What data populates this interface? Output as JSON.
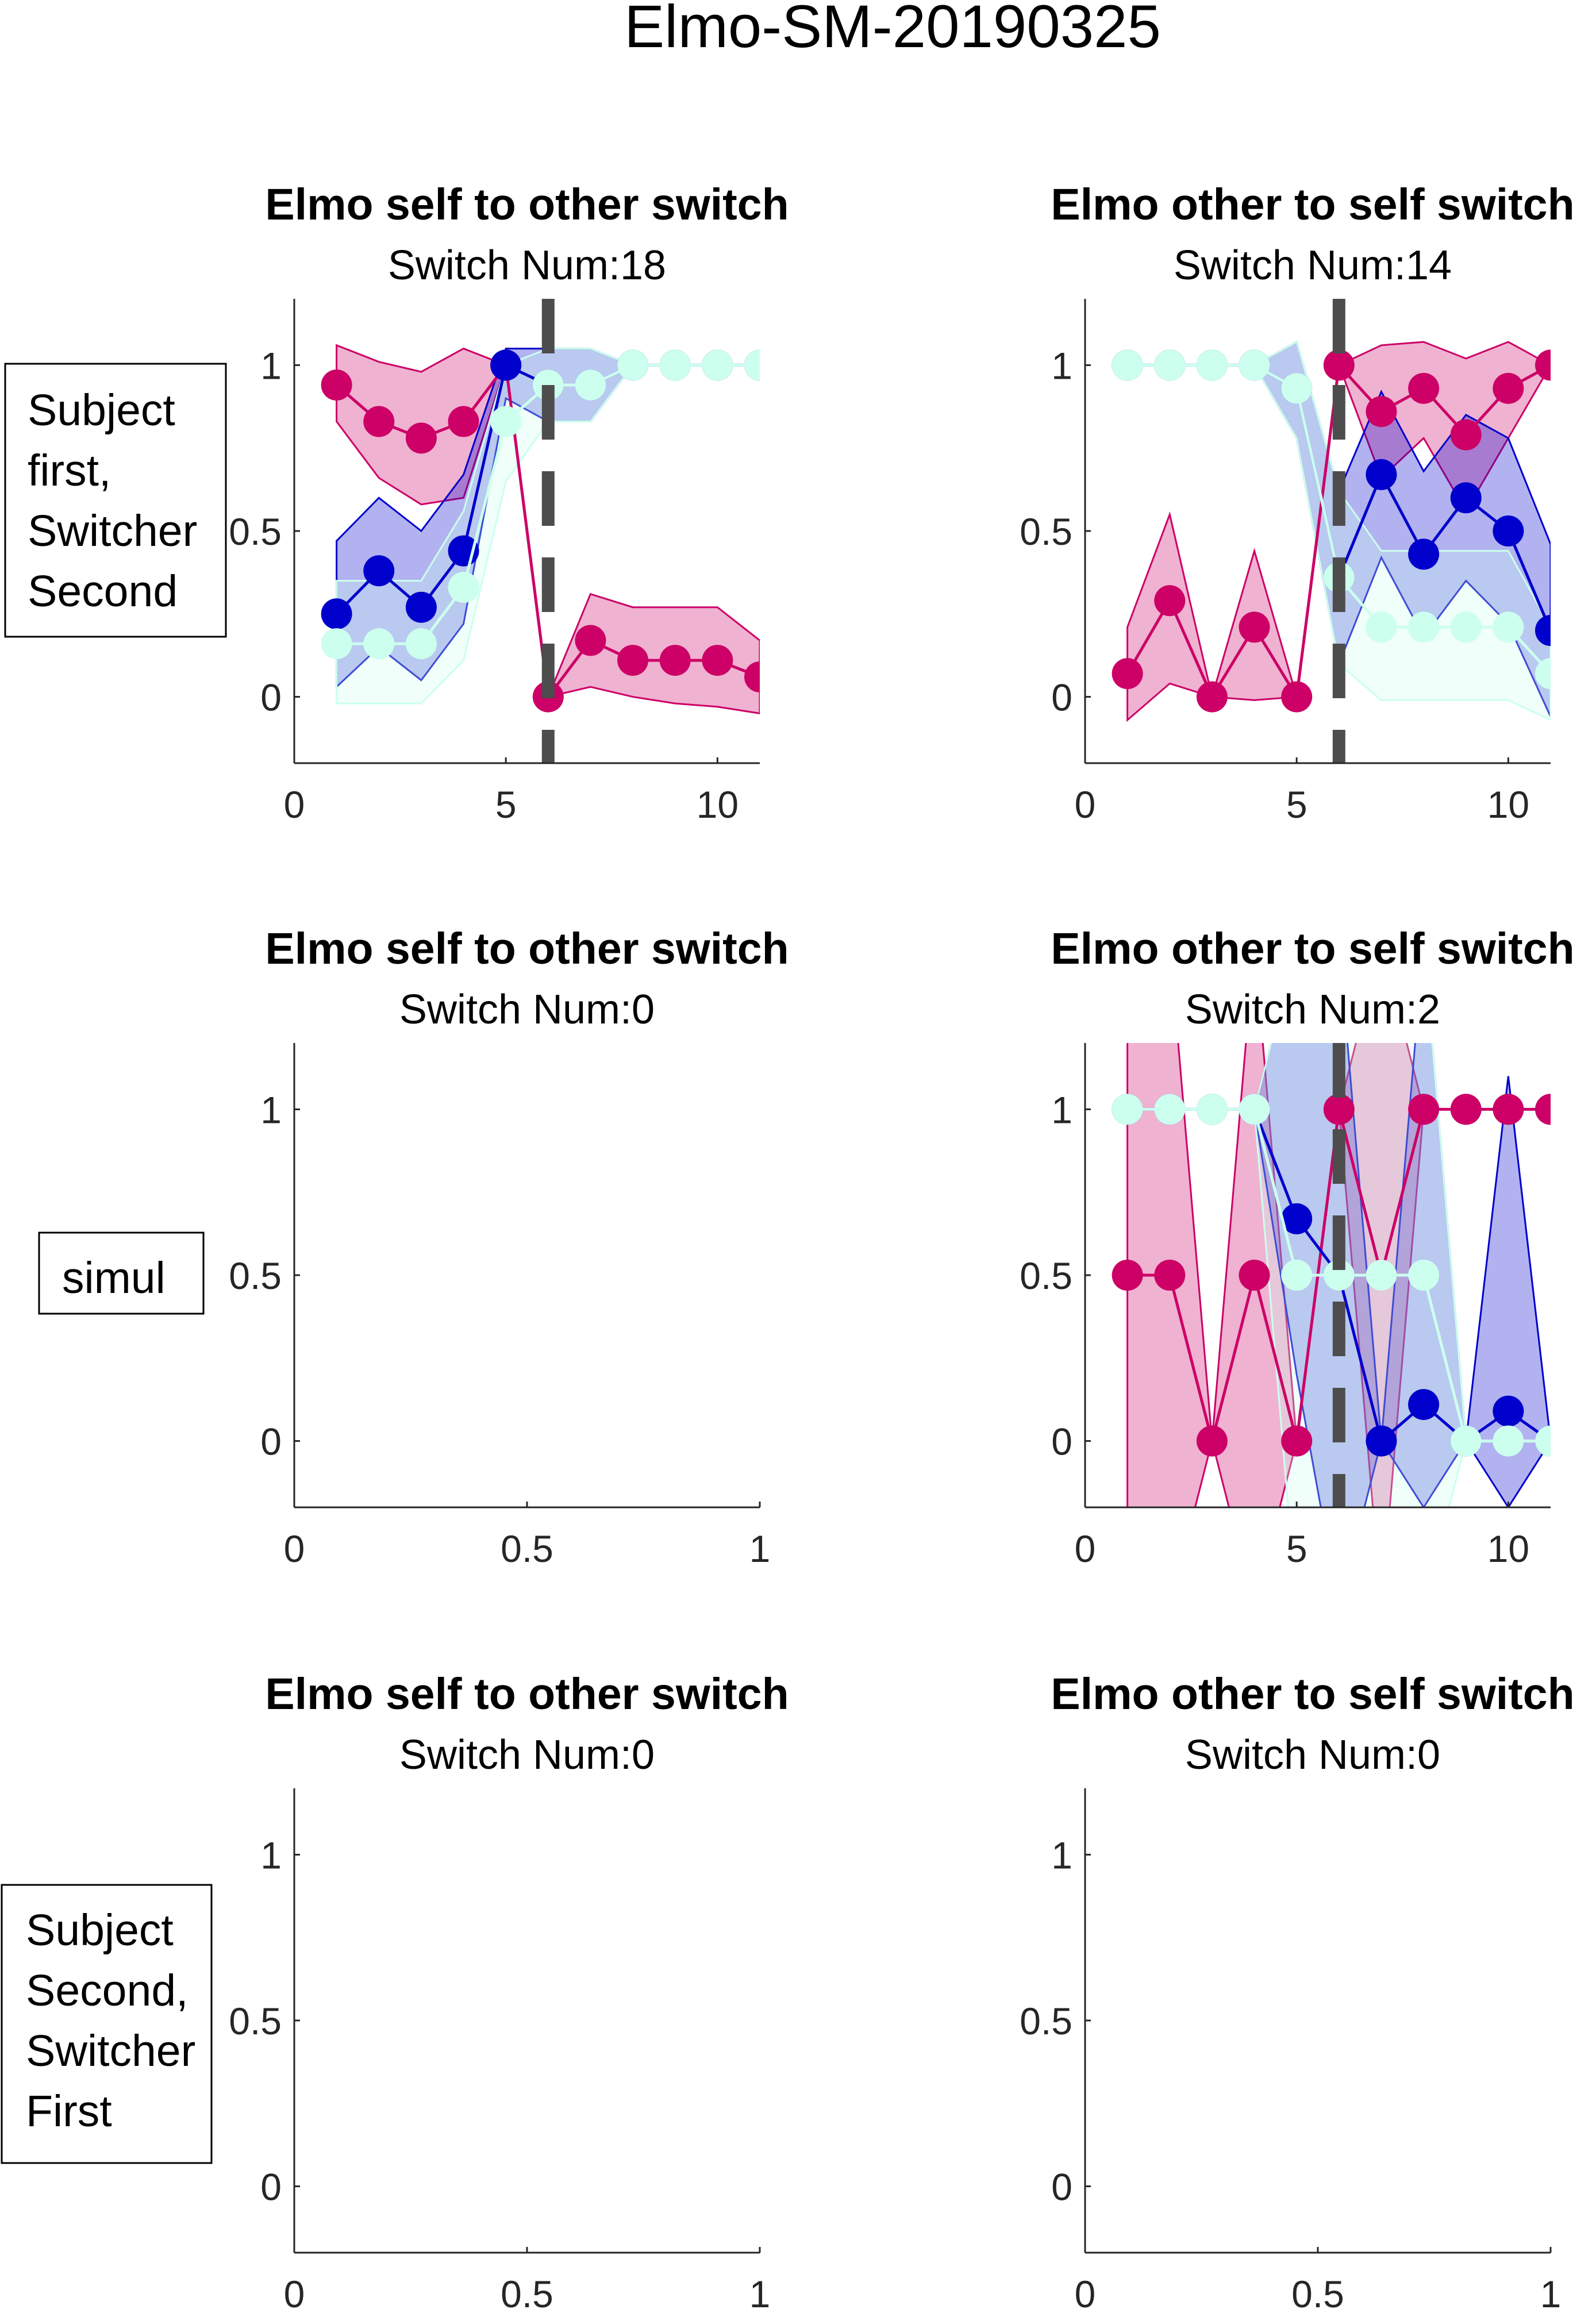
{
  "figure_title": "Elmo-SM-20190325",
  "colors": {
    "magenta": "#cc0066",
    "blue": "#0000cc",
    "cyan": "#ccffee",
    "switch_line": "#4d4d4d"
  },
  "row_labels": [
    [
      "Subject",
      "first,",
      "Switcher",
      "Second"
    ],
    [
      "simul"
    ],
    [
      "Subject",
      "Second,",
      "Switcher",
      "First"
    ]
  ],
  "chart_data": [
    {
      "type": "line",
      "title": "Elmo self to other switch",
      "subtitle": "Switch Num:18",
      "xlim": [
        0,
        11
      ],
      "ylim": [
        -0.2,
        1.2
      ],
      "xticks": [
        0,
        5,
        10
      ],
      "yticks": [
        0,
        0.5,
        1
      ],
      "switch_x": 6,
      "series": [
        {
          "color": "magenta",
          "x": [
            1,
            2,
            3,
            4,
            5,
            6,
            7,
            8,
            9,
            10,
            11
          ],
          "y": [
            0.94,
            0.83,
            0.78,
            0.83,
            1,
            0,
            0.17,
            0.11,
            0.11,
            0.11,
            0.06
          ],
          "lower": [
            0.83,
            0.66,
            0.58,
            0.6,
            1,
            0,
            0.03,
            0.0,
            -0.02,
            -0.03,
            -0.05
          ],
          "upper": [
            1.06,
            1.01,
            0.98,
            1.05,
            1,
            0,
            0.31,
            0.27,
            0.27,
            0.27,
            0.17
          ]
        },
        {
          "color": "blue",
          "x": [
            1,
            2,
            3,
            4,
            5,
            6,
            7,
            8,
            9,
            10,
            11
          ],
          "y": [
            0.25,
            0.38,
            0.27,
            0.44,
            1,
            0.94,
            0.94,
            1,
            1,
            1,
            1
          ],
          "lower": [
            0.03,
            0.15,
            0.05,
            0.22,
            0.9,
            0.83,
            0.83,
            1,
            1,
            1,
            1
          ],
          "upper": [
            0.47,
            0.6,
            0.5,
            0.67,
            1.05,
            1.05,
            1.05,
            1,
            1,
            1,
            1
          ]
        },
        {
          "color": "cyan",
          "x": [
            1,
            2,
            3,
            4,
            5,
            6,
            7,
            8,
            9,
            10,
            11
          ],
          "y": [
            0.16,
            0.16,
            0.16,
            0.33,
            0.83,
            0.94,
            0.94,
            1,
            1,
            1,
            1
          ],
          "lower": [
            -0.02,
            -0.02,
            -0.02,
            0.11,
            0.65,
            0.83,
            0.83,
            1,
            1,
            1,
            1
          ],
          "upper": [
            0.35,
            0.35,
            0.35,
            0.56,
            1.0,
            1.05,
            1.05,
            1,
            1,
            1,
            1
          ]
        }
      ]
    },
    {
      "type": "line",
      "title": "Elmo other to self switch",
      "subtitle": "Switch Num:14",
      "xlim": [
        0,
        11
      ],
      "ylim": [
        -0.2,
        1.2
      ],
      "xticks": [
        0,
        5,
        10
      ],
      "yticks": [
        0,
        0.5,
        1
      ],
      "switch_x": 6,
      "series": [
        {
          "color": "magenta",
          "x": [
            1,
            2,
            3,
            4,
            5,
            6,
            7,
            8,
            9,
            10,
            11
          ],
          "y": [
            0.07,
            0.29,
            0,
            0.21,
            0,
            1,
            0.86,
            0.93,
            0.79,
            0.93,
            1
          ],
          "lower": [
            -0.07,
            0.04,
            0,
            -0.01,
            0,
            1,
            0.66,
            0.78,
            0.56,
            0.78,
            1
          ],
          "upper": [
            0.21,
            0.55,
            0,
            0.44,
            0,
            1,
            1.06,
            1.07,
            1.02,
            1.07,
            1
          ]
        },
        {
          "color": "blue",
          "x": [
            1,
            2,
            3,
            4,
            5,
            6,
            7,
            8,
            9,
            10,
            11
          ],
          "y": [
            1,
            1,
            1,
            1,
            0.93,
            0.36,
            0.67,
            0.43,
            0.6,
            0.5,
            0.2
          ],
          "lower": [
            1,
            1,
            1,
            1,
            0.78,
            0.1,
            0.42,
            0.18,
            0.35,
            0.22,
            -0.06
          ],
          "upper": [
            1,
            1,
            1,
            1,
            1.07,
            0.62,
            0.92,
            0.68,
            0.85,
            0.78,
            0.46
          ]
        },
        {
          "color": "cyan",
          "x": [
            1,
            2,
            3,
            4,
            5,
            6,
            7,
            8,
            9,
            10,
            11
          ],
          "y": [
            1,
            1,
            1,
            1,
            0.93,
            0.36,
            0.21,
            0.21,
            0.21,
            0.21,
            0.07
          ],
          "lower": [
            1,
            1,
            1,
            1,
            0.78,
            0.1,
            -0.01,
            -0.01,
            -0.01,
            -0.01,
            -0.07
          ],
          "upper": [
            1,
            1,
            1,
            1,
            1.07,
            0.62,
            0.44,
            0.44,
            0.44,
            0.44,
            0.21
          ]
        }
      ]
    },
    {
      "type": "line",
      "title": "Elmo self to other switch",
      "subtitle": "Switch Num:0",
      "xlim": [
        0,
        1
      ],
      "ylim": [
        -0.2,
        1.2
      ],
      "xticks": [
        0,
        0.5,
        1
      ],
      "yticks": [
        0,
        0.5,
        1
      ],
      "series": []
    },
    {
      "type": "line",
      "title": "Elmo other to self switch",
      "subtitle": "Switch Num:2",
      "xlim": [
        0,
        11
      ],
      "ylim": [
        -0.2,
        1.2
      ],
      "xticks": [
        0,
        5,
        10
      ],
      "yticks": [
        0,
        0.5,
        1
      ],
      "switch_x": 6,
      "series": [
        {
          "color": "magenta",
          "x": [
            1,
            2,
            3,
            4,
            5,
            6,
            7,
            8,
            9,
            10,
            11
          ],
          "y": [
            0.5,
            0.5,
            0,
            0.5,
            0,
            1,
            0.5,
            1,
            1,
            1,
            1
          ],
          "lower": [
            -0.5,
            -0.5,
            0,
            -0.5,
            0,
            1,
            -0.5,
            1,
            1,
            1,
            1
          ],
          "upper": [
            1.5,
            1.5,
            0,
            1.5,
            0,
            1,
            1.5,
            1,
            1,
            1,
            1
          ]
        },
        {
          "color": "blue",
          "x": [
            1,
            2,
            3,
            4,
            5,
            6,
            7,
            8,
            9,
            10,
            11
          ],
          "y": [
            1,
            1,
            1,
            1,
            0.67,
            0.5,
            0,
            0.11,
            0,
            0.09,
            0
          ],
          "lower": [
            1,
            1,
            1,
            1,
            0.2,
            -0.5,
            0,
            -0.2,
            0,
            -0.2,
            0
          ],
          "upper": [
            1,
            1,
            1,
            1,
            1.5,
            1.5,
            0,
            1.5,
            0,
            1.1,
            0
          ]
        },
        {
          "color": "cyan",
          "x": [
            1,
            2,
            3,
            4,
            5,
            6,
            7,
            8,
            9,
            10,
            11
          ],
          "y": [
            1,
            1,
            1,
            1,
            0.5,
            0.5,
            0.5,
            0.5,
            0,
            0,
            0
          ],
          "lower": [
            1,
            1,
            1,
            1,
            -0.5,
            -0.5,
            -0.5,
            -0.5,
            0,
            0,
            0
          ],
          "upper": [
            1,
            1,
            1,
            1,
            1.5,
            1.5,
            1.5,
            1.5,
            0,
            0,
            0
          ]
        }
      ]
    },
    {
      "type": "line",
      "title": "Elmo self to other switch",
      "subtitle": "Switch Num:0",
      "xlim": [
        0,
        1
      ],
      "ylim": [
        -0.2,
        1.2
      ],
      "xticks": [
        0,
        0.5,
        1
      ],
      "yticks": [
        0,
        0.5,
        1
      ],
      "series": []
    },
    {
      "type": "line",
      "title": "Elmo other to self switch",
      "subtitle": "Switch Num:0",
      "xlim": [
        0,
        1
      ],
      "ylim": [
        -0.2,
        1.2
      ],
      "xticks": [
        0,
        0.5,
        1
      ],
      "yticks": [
        0,
        0.5,
        1
      ],
      "series": []
    }
  ]
}
